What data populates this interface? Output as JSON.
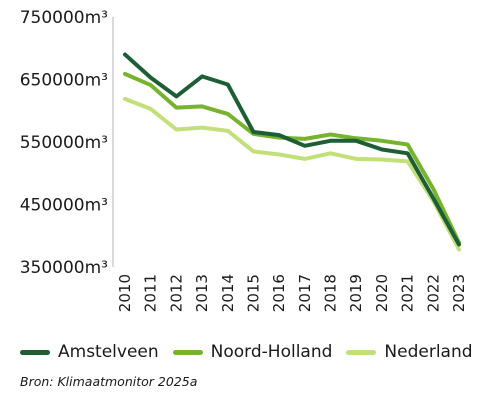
{
  "chart_data": {
    "type": "line",
    "title": "",
    "xlabel": "",
    "ylabel": "",
    "x": [
      "2010",
      "2011",
      "2012",
      "2013",
      "2014",
      "2015",
      "2016",
      "2017",
      "2018",
      "2019",
      "2020",
      "2021",
      "2022",
      "2023"
    ],
    "ylim": [
      350000,
      750000
    ],
    "yticks": [
      350000,
      450000,
      550000,
      650000,
      750000
    ],
    "ytick_labels": [
      "350000m³",
      "450000m³",
      "550000m³",
      "650000m³",
      "750000m³"
    ],
    "grid": false,
    "legend_position": "bottom",
    "series": [
      {
        "name": "Amstelveen",
        "color": "#1d5e35",
        "values": [
          690000,
          653000,
          623000,
          655000,
          642000,
          566000,
          561000,
          544000,
          552000,
          552000,
          538000,
          532000,
          460000,
          386000
        ]
      },
      {
        "name": "Noord-Holland",
        "color": "#77b32f",
        "values": [
          659000,
          641000,
          605000,
          607000,
          595000,
          563000,
          557000,
          555000,
          562000,
          556000,
          552000,
          546000,
          475000,
          389000
        ]
      },
      {
        "name": "Nederland",
        "color": "#c3df79",
        "values": [
          619000,
          603000,
          570000,
          573000,
          568000,
          535000,
          530000,
          523000,
          532000,
          523000,
          522000,
          519000,
          456000,
          378000
        ]
      }
    ]
  },
  "source": "Bron: Klimaatmonitor 2025a"
}
